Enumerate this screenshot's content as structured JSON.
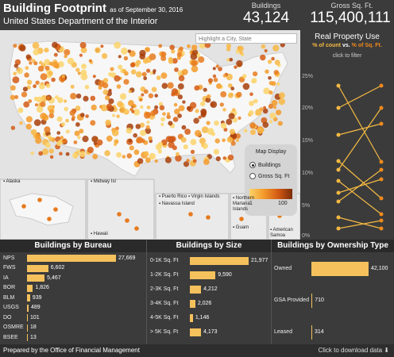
{
  "header": {
    "title": "Building Footprint",
    "as_of": "as of September 30, 2016",
    "subtitle": "United States Department of the Interior",
    "buildings_label": "Buildings",
    "buildings_value": "43,124",
    "sqft_label": "Gross Sq. Ft.",
    "sqft_value": "115,400,111"
  },
  "map": {
    "search_placeholder": "Highlight a City, State",
    "legend_title": "Map Display",
    "option_buildings": "Buildings",
    "option_sqft": "Gross Sq. Ft",
    "scale_min": "1",
    "scale_max": "100",
    "insets": [
      "Alaska",
      "Midway Isl",
      "Hawaii",
      "Puerto Rico",
      "Virgin Islands",
      "Navassa Island",
      "Northern Mariana Islands",
      "Guam",
      "American Samoa"
    ]
  },
  "real_property": {
    "title": "Real Property Use",
    "count_label": "% of count",
    "vs": "vs.",
    "sqft_label": "% of Sq. Ft.",
    "hint": "click to filter",
    "ticks": [
      "25%",
      "20%",
      "15%",
      "10%",
      "5%",
      "0%"
    ],
    "colors": {
      "count": "#f4b942",
      "sqft": "#f08a1c"
    }
  },
  "bureau": {
    "title": "Buildings by Bureau",
    "max": 27669,
    "rows": [
      {
        "label": "NPS",
        "value": 27669,
        "text": "27,669"
      },
      {
        "label": "FWS",
        "value": 6602,
        "text": "6,602"
      },
      {
        "label": "IA",
        "value": 5467,
        "text": "5,467"
      },
      {
        "label": "BOR",
        "value": 1826,
        "text": "1,826"
      },
      {
        "label": "BLM",
        "value": 939,
        "text": "939"
      },
      {
        "label": "USGS",
        "value": 489,
        "text": "489"
      },
      {
        "label": "DO",
        "value": 101,
        "text": "101"
      },
      {
        "label": "OSMRE",
        "value": 18,
        "text": "18"
      },
      {
        "label": "BSEE",
        "value": 13,
        "text": "13"
      }
    ]
  },
  "size": {
    "title": "Buildings by Size",
    "max": 21977,
    "rows": [
      {
        "label": "0-1K Sq. Ft",
        "value": 21977,
        "text": "21,977"
      },
      {
        "label": "1-2K Sq. Ft",
        "value": 9590,
        "text": "9,590"
      },
      {
        "label": "2-3K Sq. Ft",
        "value": 4212,
        "text": "4,212"
      },
      {
        "label": "3-4K Sq. Ft",
        "value": 2026,
        "text": "2,026"
      },
      {
        "label": "4-5K Sq. Ft",
        "value": 1146,
        "text": "1,146"
      },
      {
        "label": "> 5K Sq. Ft",
        "value": 4173,
        "text": "4,173"
      }
    ]
  },
  "ownership": {
    "title": "Buildings by Ownership Type",
    "max": 42100,
    "rows": [
      {
        "label": "Owned",
        "value": 42100,
        "text": "42,100"
      },
      {
        "label": "GSA Provided",
        "value": 710,
        "text": "710"
      },
      {
        "label": "Leased",
        "value": 314,
        "text": "314"
      }
    ]
  },
  "footer": {
    "prepared": "Prepared by the Office of Financial Management",
    "download": "Click to download data"
  }
}
